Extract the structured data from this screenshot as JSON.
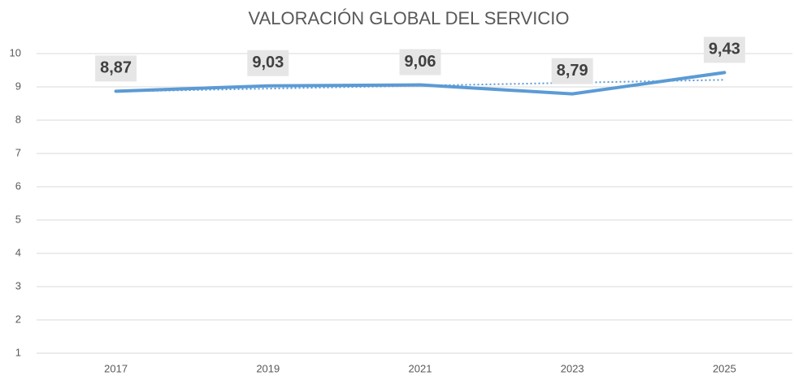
{
  "chart_data": {
    "type": "line",
    "title": "VALORACIÓN GLOBAL DEL SERVICIO",
    "categories": [
      "2017",
      "2019",
      "2021",
      "2023",
      "2025"
    ],
    "values": [
      8.87,
      9.03,
      9.06,
      8.79,
      9.43
    ],
    "value_labels": [
      "8,87",
      "9,03",
      "9,06",
      "8,79",
      "9,43"
    ],
    "color": "#5b9bd5",
    "ylim": [
      1,
      10
    ],
    "yticks": [
      1,
      2,
      3,
      4,
      5,
      6,
      7,
      8,
      9,
      10
    ],
    "grid": true,
    "trendline": true
  }
}
